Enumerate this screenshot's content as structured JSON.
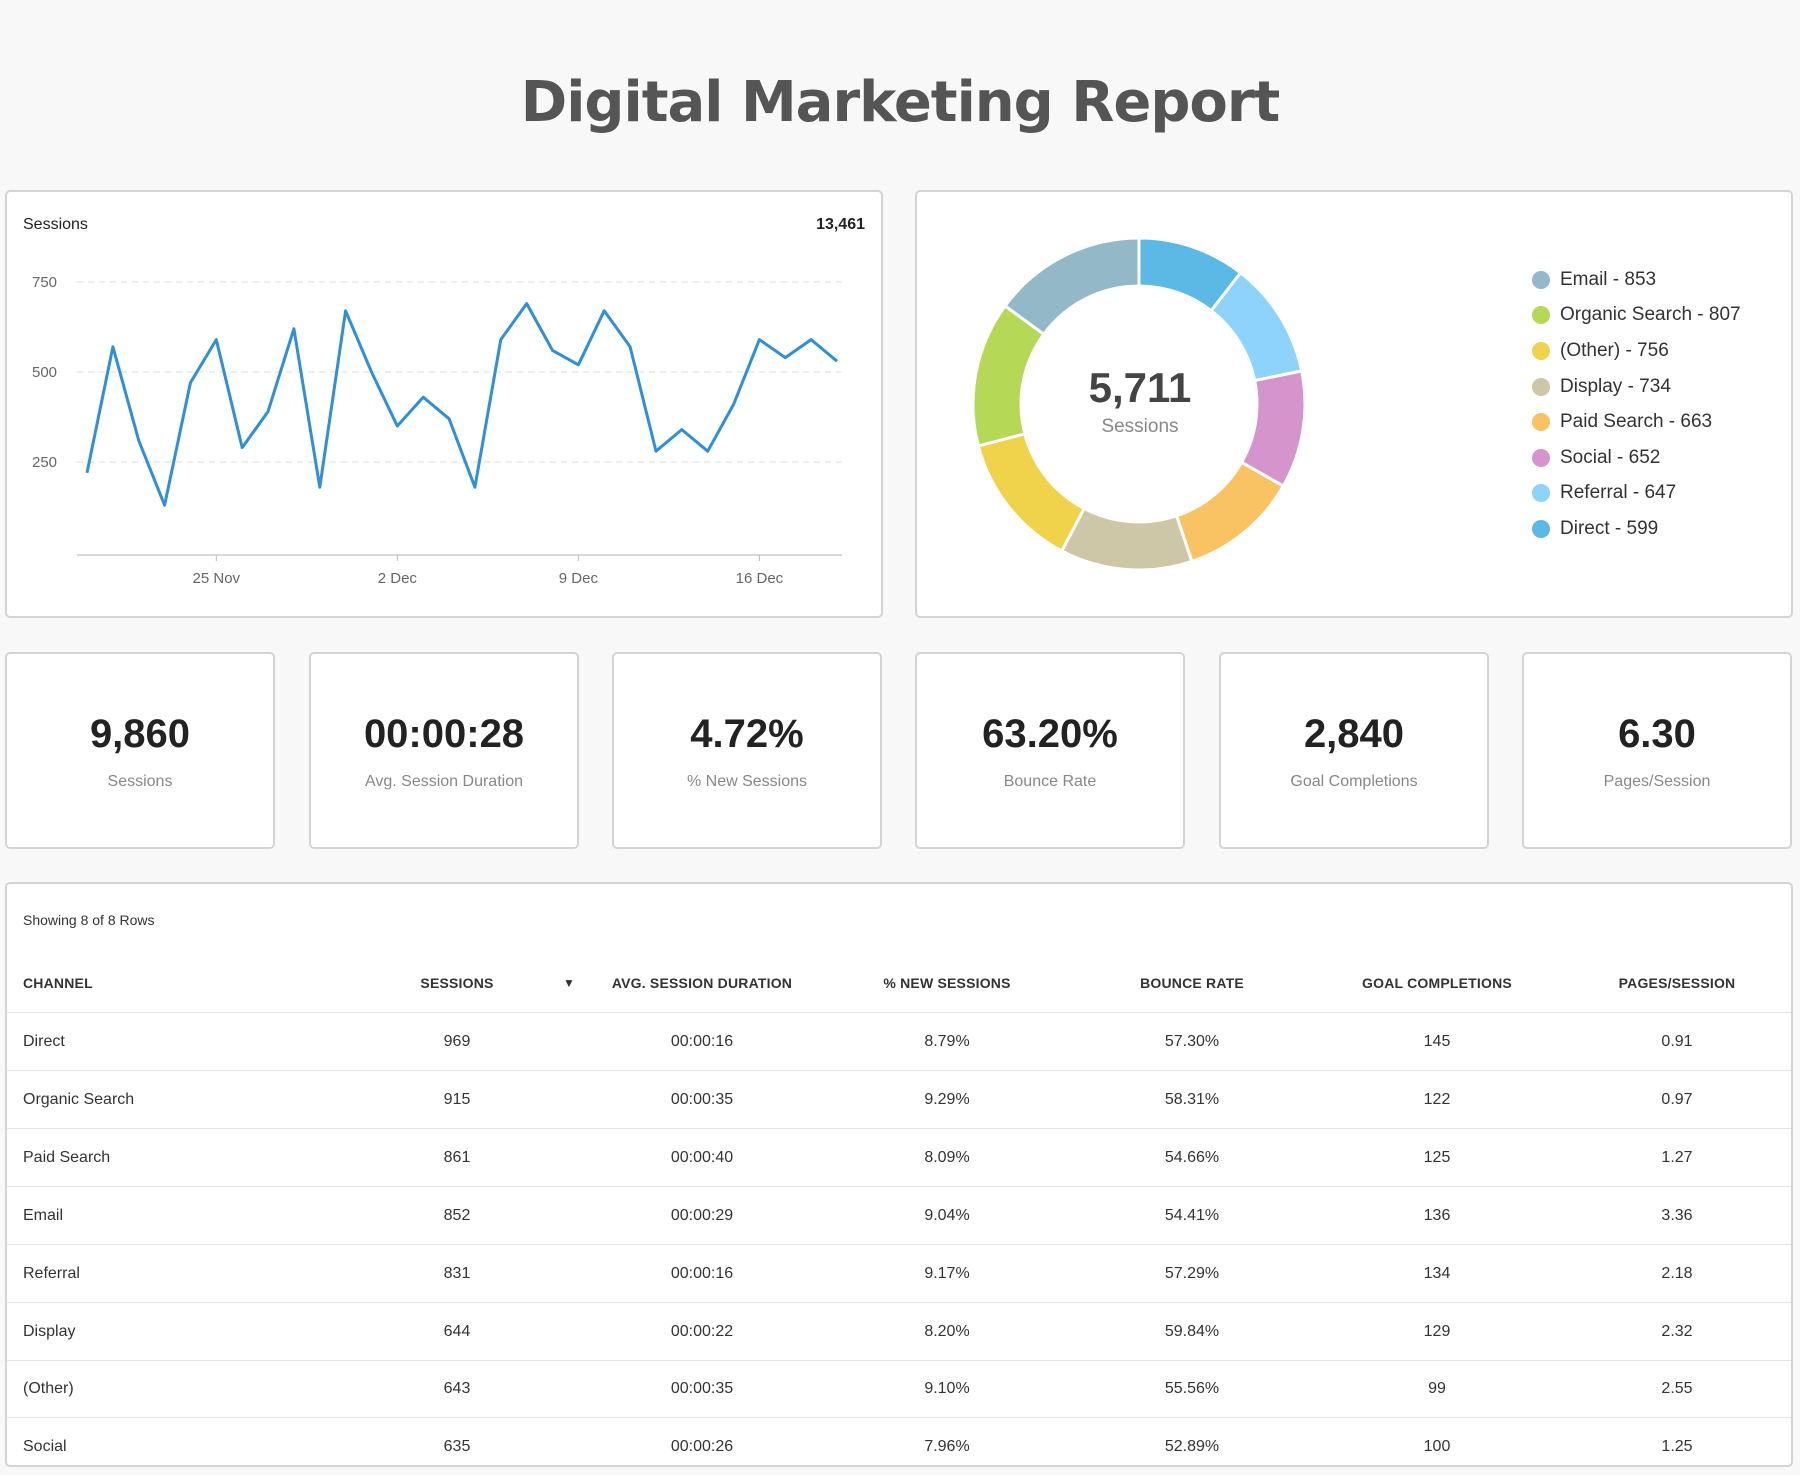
{
  "page": {
    "title": "Digital Marketing Report"
  },
  "colors": {
    "line": "#2f8fd8",
    "grid": "#dddddd",
    "donut": [
      "#93b8c8",
      "#b5d957",
      "#f0d34b",
      "#cdc6a7",
      "#f9c262",
      "#d595cc",
      "#8dd3fb",
      "#5cb8e5"
    ]
  },
  "line_card": {
    "title": "Sessions",
    "total": "13,461"
  },
  "donut_card": {
    "center_value": "5,711",
    "center_label": "Sessions"
  },
  "kpis": [
    {
      "value": "9,860",
      "label": "Sessions"
    },
    {
      "value": "00:00:28",
      "label": "Avg. Session Duration"
    },
    {
      "value": "4.72%",
      "label": "% New Sessions"
    },
    {
      "value": "63.20%",
      "label": "Bounce Rate"
    },
    {
      "value": "2,840",
      "label": "Goal Completions"
    },
    {
      "value": "6.30",
      "label": "Pages/Session"
    }
  ],
  "table": {
    "caption": "Showing 8 of 8 Rows",
    "sort_icon": "sort-descending-icon",
    "columns": [
      "Channel",
      "Sessions",
      "Avg. Session Duration",
      "% New Sessions",
      "Bounce Rate",
      "Goal Completions",
      "Pages/Session"
    ],
    "rows": [
      [
        "Direct",
        "969",
        "00:00:16",
        "8.79%",
        "57.30%",
        "145",
        "0.91"
      ],
      [
        "Organic Search",
        "915",
        "00:00:35",
        "9.29%",
        "58.31%",
        "122",
        "0.97"
      ],
      [
        "Paid Search",
        "861",
        "00:00:40",
        "8.09%",
        "54.66%",
        "125",
        "1.27"
      ],
      [
        "Email",
        "852",
        "00:00:29",
        "9.04%",
        "54.41%",
        "136",
        "3.36"
      ],
      [
        "Referral",
        "831",
        "00:00:16",
        "9.17%",
        "57.29%",
        "134",
        "2.18"
      ],
      [
        "Display",
        "644",
        "00:00:22",
        "8.20%",
        "59.84%",
        "129",
        "2.32"
      ],
      [
        "(Other)",
        "643",
        "00:00:35",
        "9.10%",
        "55.56%",
        "99",
        "2.55"
      ],
      [
        "Social",
        "635",
        "00:00:26",
        "7.96%",
        "52.89%",
        "100",
        "1.25"
      ]
    ]
  },
  "chart_data": [
    {
      "type": "line",
      "title": "Sessions",
      "series": [
        {
          "values": [
            220,
            570,
            310,
            130,
            470,
            590,
            290,
            390,
            620,
            180,
            670,
            500,
            350,
            430,
            370,
            180,
            590,
            690,
            560,
            520,
            670,
            570,
            280,
            340,
            280,
            410,
            590,
            540,
            590,
            530
          ]
        }
      ],
      "x_start": "2018-11-20",
      "x_end": "2018-12-19",
      "x_ticks": [
        "25 Nov",
        "2 Dec",
        "9 Dec",
        "16 Dec"
      ],
      "y_ticks": [
        "250",
        "500",
        "750"
      ],
      "ylim": [
        0,
        850
      ],
      "grid": true
    },
    {
      "type": "pie",
      "donut": true,
      "categories": [
        "Email",
        "Organic Search",
        "(Other)",
        "Display",
        "Paid Search",
        "Social",
        "Referral",
        "Direct"
      ],
      "values": [
        853,
        807,
        756,
        734,
        663,
        652,
        647,
        599
      ],
      "legend_labels": [
        "Email - 853",
        "Organic Search - 807",
        "(Other) - 756",
        "Display - 734",
        "Paid Search - 663",
        "Social - 652",
        "Referral - 647",
        "Direct - 599"
      ],
      "legend": "right"
    }
  ]
}
